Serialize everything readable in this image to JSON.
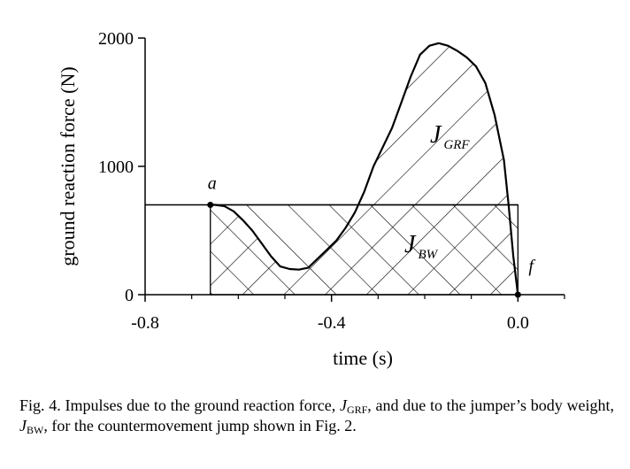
{
  "chart_data": {
    "type": "area",
    "xlabel": "time (s)",
    "ylabel": "ground reaction force (N)",
    "xlim": [
      -0.8,
      0.1
    ],
    "ylim": [
      0,
      2000
    ],
    "x_ticks": [
      {
        "value": -0.8,
        "label": "-0.8"
      },
      {
        "value": -0.4,
        "label": "-0.4"
      },
      {
        "value": 0.0,
        "label": "0.0"
      }
    ],
    "x_minor_ticks": [
      -0.7,
      -0.6,
      -0.5,
      -0.3,
      -0.2,
      -0.1,
      0.1
    ],
    "y_ticks": [
      {
        "value": 0,
        "label": "0"
      },
      {
        "value": 1000,
        "label": "1000"
      },
      {
        "value": 2000,
        "label": "2000"
      }
    ],
    "body_weight_N": 700,
    "series": [
      {
        "x": [
          -0.8,
          -0.66,
          -0.65,
          -0.63,
          -0.61,
          -0.59,
          -0.57,
          -0.55,
          -0.53,
          -0.51,
          -0.49,
          -0.47,
          -0.45,
          -0.43,
          -0.41,
          -0.39,
          -0.37,
          -0.35,
          -0.33,
          -0.31,
          -0.29,
          -0.27,
          -0.25,
          -0.23,
          -0.21,
          -0.19,
          -0.17,
          -0.15,
          -0.13,
          -0.11,
          -0.09,
          -0.07,
          -0.05,
          -0.03,
          -0.02,
          -0.01,
          0.0
        ],
        "y": [
          700,
          700,
          700,
          690,
          650,
          580,
          500,
          400,
          300,
          220,
          200,
          195,
          210,
          280,
          350,
          420,
          520,
          640,
          800,
          1000,
          1150,
          1300,
          1500,
          1700,
          1870,
          1940,
          1960,
          1940,
          1900,
          1850,
          1780,
          1650,
          1400,
          1050,
          700,
          300,
          0
        ]
      }
    ],
    "annotations": [
      {
        "text": "a",
        "x": -0.66,
        "y": 700
      },
      {
        "text": "f",
        "x": 0.0,
        "y": 0
      },
      {
        "text": "J",
        "subscript": "GRF",
        "region": "area above body weight"
      },
      {
        "text": "J",
        "subscript": "BW",
        "region": "body weight rectangle"
      }
    ]
  },
  "caption": {
    "prefix": "Fig. 4. Impulses due to the ground reaction force, ",
    "sym_grf": "J",
    "sub_grf": "GRF",
    "middle": ", and due to the jumper’s body weight, ",
    "sym_bw": "J",
    "sub_bw": "BW",
    "suffix": ", for the countermovement jump shown in Fig. 2."
  }
}
